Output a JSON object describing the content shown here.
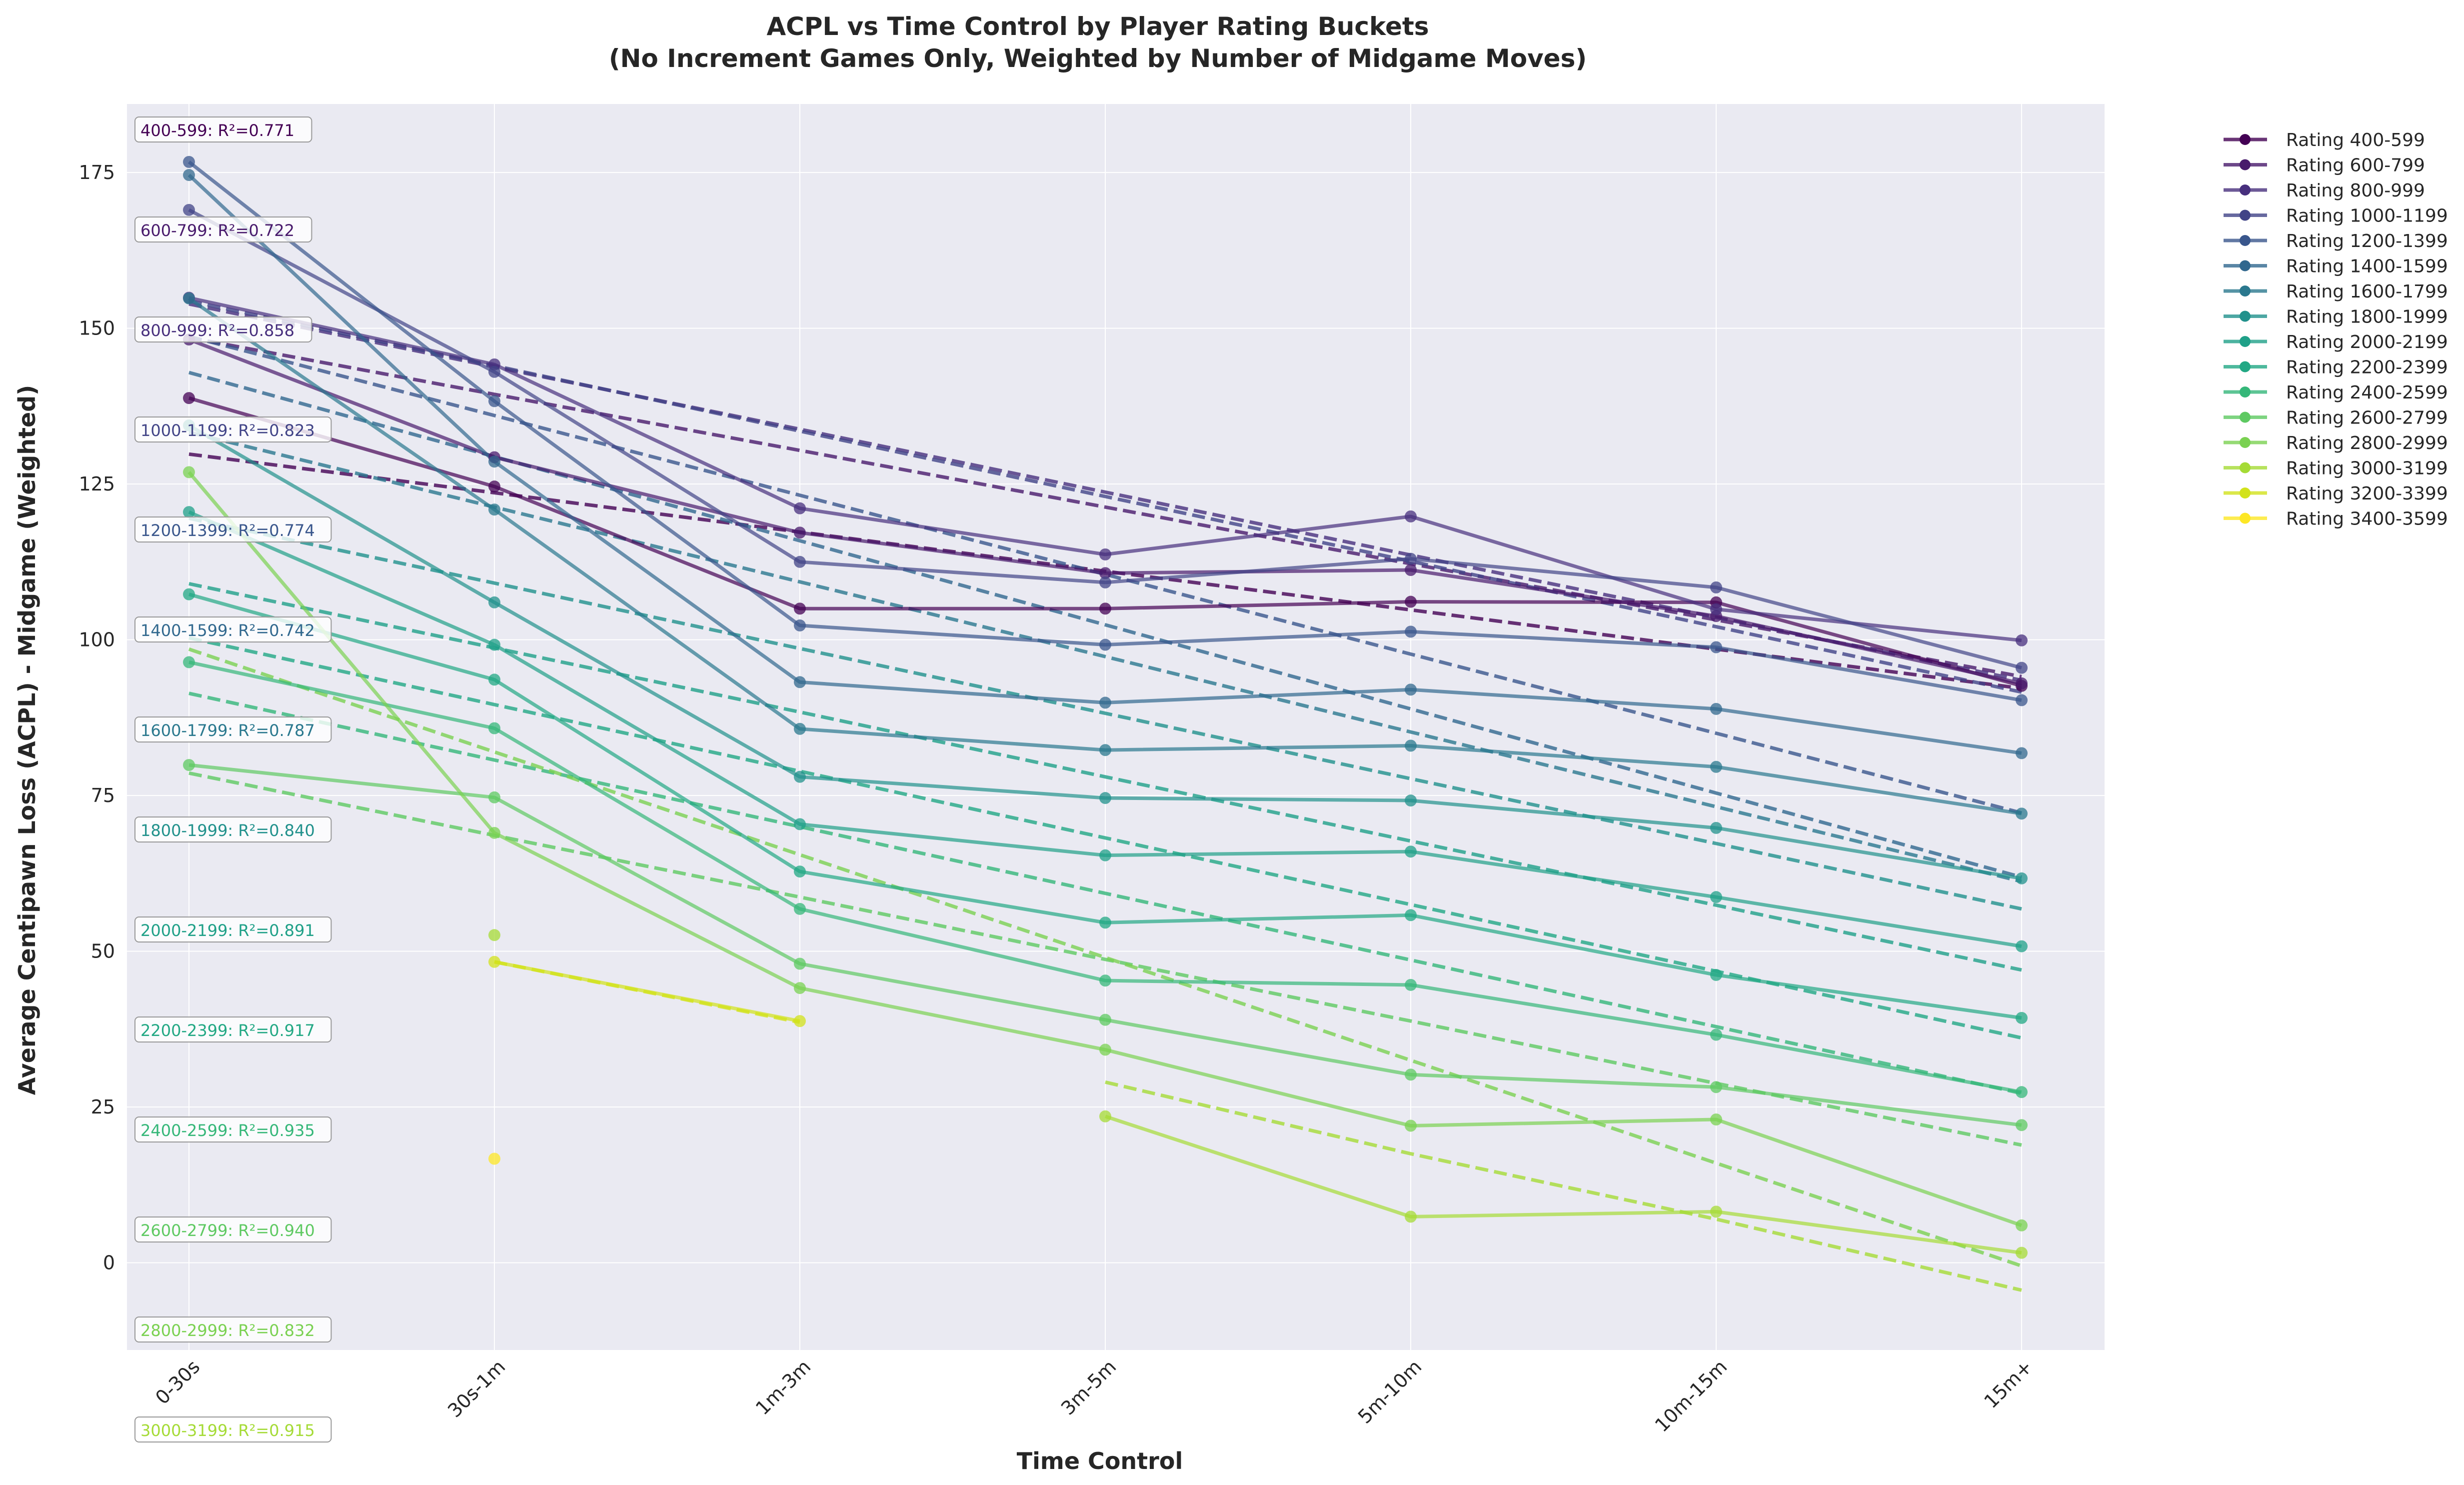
{
  "chart_data": {
    "type": "line",
    "title": "ACPL vs Time Control by Player Rating Buckets",
    "subtitle": "(No Increment Games Only, Weighted by Number of Midgame Moves)",
    "xlabel": "Time Control",
    "ylabel": "Average Centipawn Loss (ACPL) - Midgame (Weighted)",
    "categories": [
      "0-30s",
      "30s-1m",
      "1m-3m",
      "3m-5m",
      "5m-10m",
      "10m-15m",
      "15m+"
    ],
    "ylim": [
      -14,
      186
    ],
    "yticks": [
      0,
      25,
      50,
      75,
      100,
      125,
      150,
      175
    ],
    "grid": true,
    "legend_position": "outside-right",
    "series": [
      {
        "name": "Rating 400-599",
        "color": "#440154",
        "values": [
          138.8,
          124.6,
          105.0,
          105.0,
          106.1,
          106.0,
          92.6
        ],
        "trend": [
          129.8,
          123.6,
          117.3,
          111.0,
          104.8,
          98.5,
          92.2
        ],
        "r2_label": "400-599: R²=0.771"
      },
      {
        "name": "Rating 600-799",
        "color": "#481a6c",
        "values": [
          148.2,
          129.3,
          117.2,
          110.7,
          111.2,
          103.8,
          93.0
        ],
        "trend": [
          148.5,
          139.4,
          130.4,
          121.3,
          112.2,
          103.2,
          94.1
        ],
        "r2_label": "600-799: R²=0.722"
      },
      {
        "name": "Rating 800-999",
        "color": "#472f7d",
        "values": [
          154.9,
          144.2,
          121.1,
          113.7,
          119.8,
          104.9,
          99.9
        ],
        "trend": [
          153.9,
          143.8,
          133.8,
          123.7,
          113.6,
          103.6,
          93.5
        ],
        "r2_label": "800-999: R²=0.858"
      },
      {
        "name": "Rating 1000-1199",
        "color": "#414487",
        "values": [
          169.0,
          143.0,
          112.5,
          109.2,
          113.0,
          108.4,
          95.5
        ],
        "trend": [
          154.4,
          144.0,
          133.5,
          123.0,
          112.6,
          102.1,
          91.6
        ],
        "r2_label": "1000-1199: R²=0.823"
      },
      {
        "name": "Rating 1200-1399",
        "color": "#39568c",
        "values": [
          176.7,
          138.3,
          102.3,
          99.2,
          101.3,
          98.8,
          90.3
        ],
        "trend": [
          148.7,
          136.0,
          123.2,
          110.5,
          97.7,
          85.0,
          72.2
        ],
        "r2_label": "1200-1399: R²=0.774"
      },
      {
        "name": "Rating 1400-1599",
        "color": "#31688e",
        "values": [
          174.6,
          128.6,
          93.2,
          89.9,
          92.0,
          88.9,
          81.8
        ],
        "trend": [
          142.9,
          129.4,
          115.9,
          102.4,
          88.9,
          75.4,
          61.9
        ],
        "r2_label": "1400-1599: R²=0.742"
      },
      {
        "name": "Rating 1600-1799",
        "color": "#2a788e",
        "values": [
          154.8,
          120.9,
          85.7,
          82.3,
          83.0,
          79.6,
          72.1
        ],
        "trend": [
          133.3,
          121.3,
          109.3,
          97.3,
          85.2,
          73.2,
          61.2
        ],
        "r2_label": "1600-1799: R²=0.787"
      },
      {
        "name": "Rating 1800-1999",
        "color": "#21918c",
        "values": [
          134.4,
          106.0,
          78.0,
          74.6,
          74.2,
          69.8,
          61.7
        ],
        "trend": [
          119.5,
          109.1,
          98.6,
          88.2,
          77.7,
          67.3,
          56.8
        ],
        "r2_label": "1800-1999: R²=0.840"
      },
      {
        "name": "Rating 2000-2199",
        "color": "#1fa088",
        "values": [
          120.5,
          99.2,
          70.4,
          65.4,
          66.0,
          58.7,
          50.8
        ],
        "trend": [
          109.0,
          98.7,
          88.4,
          78.0,
          67.7,
          57.4,
          47.0
        ],
        "r2_label": "2000-2199: R²=0.891"
      },
      {
        "name": "Rating 2200-2399",
        "color": "#22a884",
        "values": [
          107.3,
          93.6,
          62.8,
          54.6,
          55.8,
          46.2,
          39.3
        ],
        "trend": [
          100.3,
          89.6,
          78.9,
          68.2,
          57.5,
          46.8,
          36.1
        ],
        "r2_label": "2200-2399: R²=0.917"
      },
      {
        "name": "Rating 2400-2599",
        "color": "#35b779",
        "values": [
          96.4,
          85.8,
          56.8,
          45.3,
          44.6,
          36.6,
          27.4
        ],
        "trend": [
          91.4,
          80.7,
          70.0,
          59.3,
          48.6,
          37.9,
          27.2
        ],
        "r2_label": "2400-2599: R²=0.935"
      },
      {
        "name": "Rating 2600-2799",
        "color": "#5ec962",
        "values": [
          79.9,
          74.7,
          48.0,
          39.0,
          30.2,
          28.2,
          22.1
        ],
        "trend": [
          78.6,
          68.6,
          58.7,
          48.7,
          38.8,
          28.8,
          18.9
        ],
        "r2_label": "2600-2799: R²=0.940"
      },
      {
        "name": "Rating 2800-2999",
        "color": "#7ad151",
        "values": [
          126.9,
          69.0,
          44.1,
          34.2,
          22.0,
          23.0,
          6.0
        ],
        "trend": [
          98.5,
          82.0,
          65.5,
          49.0,
          32.5,
          16.0,
          -0.5
        ],
        "r2_label": "2800-2999: R²=0.832"
      },
      {
        "name": "Rating 3000-3199",
        "color": "#a5db36",
        "values": [
          null,
          52.6,
          null,
          23.5,
          7.4,
          8.2,
          1.6
        ],
        "trend": [
          null,
          49.5,
          null,
          29.0,
          17.5,
          7.0,
          -4.4
        ],
        "r2_label": "3000-3199: R²=0.915"
      },
      {
        "name": "Rating 3200-3399",
        "color": "#d2e21b",
        "values": [
          null,
          48.3,
          38.8,
          null,
          null,
          null,
          null
        ],
        "trend": [
          null,
          48.3,
          38.6,
          null,
          null,
          null,
          null
        ],
        "r2_label": ""
      },
      {
        "name": "Rating 3400-3599",
        "color": "#fde725",
        "values": [
          null,
          16.7,
          null,
          null,
          null,
          null,
          null
        ],
        "trend": [
          null,
          null,
          null,
          null,
          null,
          null,
          null
        ],
        "r2_label": ""
      }
    ]
  }
}
